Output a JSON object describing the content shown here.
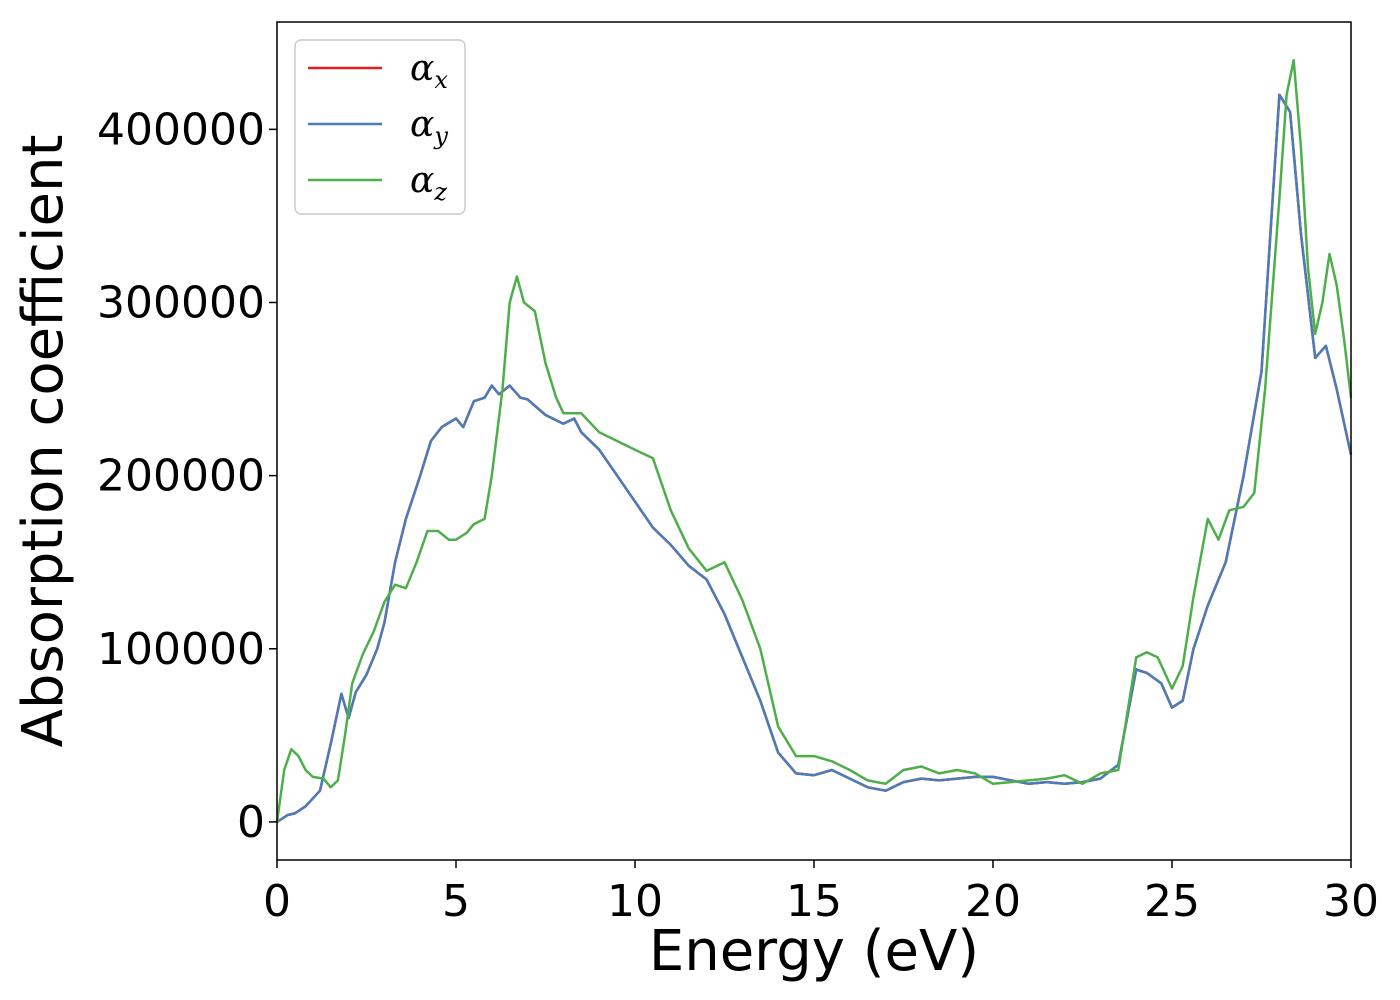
{
  "chart_data": {
    "type": "line",
    "title": "",
    "xlabel": "Energy (eV)",
    "ylabel": "Absorption coefficient",
    "xlim": [
      0,
      30
    ],
    "ylim": [
      -22000,
      462000
    ],
    "xticks": [
      0,
      5,
      10,
      15,
      20,
      25,
      30
    ],
    "yticks": [
      0,
      100000,
      200000,
      300000,
      400000
    ],
    "xtick_labels": [
      "0",
      "5",
      "10",
      "15",
      "20",
      "25",
      "30"
    ],
    "ytick_labels": [
      "0",
      "100000",
      "200000",
      "300000",
      "400000"
    ],
    "grid": false,
    "legend_position": "top-left",
    "series": [
      {
        "name": "αx",
        "label_base": "α",
        "label_sub": "x",
        "color": "#e41a1c",
        "x": [
          0,
          0.3,
          0.5,
          0.8,
          1.2,
          1.5,
          1.8,
          2.0,
          2.2,
          2.5,
          2.8,
          3.0,
          3.3,
          3.6,
          4.0,
          4.3,
          4.6,
          5.0,
          5.2,
          5.5,
          5.8,
          6.0,
          6.2,
          6.5,
          6.8,
          7.0,
          7.5,
          8.0,
          8.3,
          8.5,
          9.0,
          9.5,
          10.0,
          10.5,
          11.0,
          11.5,
          12.0,
          12.5,
          13.0,
          13.5,
          14.0,
          14.5,
          15.0,
          15.5,
          16.0,
          16.5,
          17.0,
          17.5,
          18.0,
          18.5,
          19.0,
          19.5,
          20.0,
          20.5,
          21.0,
          21.5,
          22.0,
          22.5,
          23.0,
          23.5,
          24.0,
          24.3,
          24.7,
          25.0,
          25.3,
          25.6,
          26.0,
          26.5,
          27.0,
          27.5,
          28.0,
          28.3,
          28.6,
          29.0,
          29.3,
          29.6,
          30.0
        ],
        "y": [
          0,
          4000,
          5000,
          9000,
          18000,
          45000,
          74000,
          60000,
          75000,
          85000,
          100000,
          115000,
          150000,
          175000,
          200000,
          220000,
          228000,
          233000,
          228000,
          243000,
          245000,
          252000,
          247000,
          252000,
          245000,
          244000,
          235000,
          230000,
          233000,
          225000,
          215000,
          200000,
          185000,
          170000,
          160000,
          148000,
          140000,
          120000,
          95000,
          70000,
          40000,
          28000,
          27000,
          30000,
          25000,
          20000,
          18000,
          23000,
          25000,
          24000,
          25000,
          26000,
          26000,
          24000,
          22000,
          23000,
          22000,
          23000,
          25000,
          33000,
          88000,
          86000,
          80000,
          66000,
          70000,
          100000,
          125000,
          150000,
          200000,
          260000,
          420000,
          410000,
          340000,
          268000,
          275000,
          250000,
          212000
        ]
      },
      {
        "name": "αy",
        "label_base": "α",
        "label_sub": "y",
        "color": "#4a7db8",
        "x": [
          0,
          0.3,
          0.5,
          0.8,
          1.2,
          1.5,
          1.8,
          2.0,
          2.2,
          2.5,
          2.8,
          3.0,
          3.3,
          3.6,
          4.0,
          4.3,
          4.6,
          5.0,
          5.2,
          5.5,
          5.8,
          6.0,
          6.2,
          6.5,
          6.8,
          7.0,
          7.5,
          8.0,
          8.3,
          8.5,
          9.0,
          9.5,
          10.0,
          10.5,
          11.0,
          11.5,
          12.0,
          12.5,
          13.0,
          13.5,
          14.0,
          14.5,
          15.0,
          15.5,
          16.0,
          16.5,
          17.0,
          17.5,
          18.0,
          18.5,
          19.0,
          19.5,
          20.0,
          20.5,
          21.0,
          21.5,
          22.0,
          22.5,
          23.0,
          23.5,
          24.0,
          24.3,
          24.7,
          25.0,
          25.3,
          25.6,
          26.0,
          26.5,
          27.0,
          27.5,
          28.0,
          28.3,
          28.6,
          29.0,
          29.3,
          29.6,
          30.0
        ],
        "y": [
          0,
          4000,
          5000,
          9000,
          18000,
          45000,
          74000,
          60000,
          75000,
          85000,
          100000,
          115000,
          150000,
          175000,
          200000,
          220000,
          228000,
          233000,
          228000,
          243000,
          245000,
          252000,
          247000,
          252000,
          245000,
          244000,
          235000,
          230000,
          233000,
          225000,
          215000,
          200000,
          185000,
          170000,
          160000,
          148000,
          140000,
          120000,
          95000,
          70000,
          40000,
          28000,
          27000,
          30000,
          25000,
          20000,
          18000,
          23000,
          25000,
          24000,
          25000,
          26000,
          26000,
          24000,
          22000,
          23000,
          22000,
          23000,
          25000,
          33000,
          88000,
          86000,
          80000,
          66000,
          70000,
          100000,
          125000,
          150000,
          200000,
          260000,
          420000,
          410000,
          340000,
          268000,
          275000,
          250000,
          212000
        ]
      },
      {
        "name": "αz",
        "label_base": "α",
        "label_sub": "z",
        "color": "#4daf4a",
        "x": [
          0,
          0.2,
          0.4,
          0.6,
          0.8,
          1.0,
          1.3,
          1.5,
          1.7,
          1.9,
          2.1,
          2.4,
          2.7,
          3.0,
          3.3,
          3.6,
          3.9,
          4.2,
          4.5,
          4.8,
          5.0,
          5.3,
          5.5,
          5.8,
          6.0,
          6.3,
          6.5,
          6.7,
          6.9,
          7.2,
          7.5,
          7.8,
          8.0,
          8.5,
          9.0,
          9.5,
          10.0,
          10.5,
          11.0,
          11.5,
          12.0,
          12.5,
          13.0,
          13.5,
          14.0,
          14.5,
          15.0,
          15.5,
          16.0,
          16.5,
          17.0,
          17.5,
          18.0,
          18.5,
          19.0,
          19.5,
          20.0,
          20.5,
          21.0,
          21.5,
          22.0,
          22.5,
          23.0,
          23.5,
          24.0,
          24.3,
          24.6,
          25.0,
          25.3,
          25.6,
          26.0,
          26.3,
          26.6,
          27.0,
          27.3,
          27.6,
          28.0,
          28.2,
          28.4,
          28.6,
          28.8,
          29.0,
          29.2,
          29.4,
          29.6,
          29.8,
          30.0
        ],
        "y": [
          0,
          30000,
          42000,
          38000,
          30000,
          26000,
          25000,
          20000,
          24000,
          50000,
          80000,
          97000,
          110000,
          127000,
          137000,
          135000,
          150000,
          168000,
          168000,
          163000,
          163000,
          167000,
          172000,
          175000,
          200000,
          250000,
          300000,
          315000,
          300000,
          295000,
          265000,
          245000,
          236000,
          236000,
          225000,
          220000,
          215000,
          210000,
          180000,
          158000,
          145000,
          150000,
          128000,
          100000,
          55000,
          38000,
          38000,
          35000,
          30000,
          24000,
          22000,
          30000,
          32000,
          28000,
          30000,
          28000,
          22000,
          23000,
          24000,
          25000,
          27000,
          22000,
          28000,
          30000,
          95000,
          98000,
          95000,
          77000,
          90000,
          130000,
          175000,
          163000,
          180000,
          182000,
          190000,
          250000,
          360000,
          420000,
          440000,
          390000,
          320000,
          282000,
          300000,
          328000,
          310000,
          280000,
          245000
        ]
      }
    ]
  }
}
